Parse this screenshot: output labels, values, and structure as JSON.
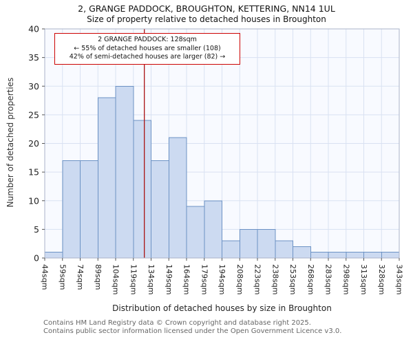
{
  "chart_data": {
    "type": "bar",
    "title": "2, GRANGE PADDOCK, BROUGHTON, KETTERING, NN14 1UL",
    "subtitle": "Size of property relative to detached houses in Broughton",
    "xlabel": "Distribution of detached houses by size in Broughton",
    "ylabel": "Number of detached properties",
    "categories": [
      "44sqm",
      "59sqm",
      "74sqm",
      "89sqm",
      "104sqm",
      "119sqm",
      "134sqm",
      "149sqm",
      "164sqm",
      "179sqm",
      "194sqm",
      "208sqm",
      "223sqm",
      "238sqm",
      "253sqm",
      "268sqm",
      "283sqm",
      "298sqm",
      "313sqm",
      "328sqm",
      "343sqm"
    ],
    "values": [
      1,
      17,
      17,
      28,
      30,
      24,
      17,
      21,
      9,
      10,
      3,
      5,
      5,
      3,
      2,
      1,
      1,
      1,
      1,
      1
    ],
    "ylim": [
      0,
      40
    ],
    "ytick_step": 5,
    "grid": true,
    "legend": null,
    "marker": {
      "value_sqm": 128
    },
    "annotation": {
      "line1": "2 GRANGE PADDOCK: 128sqm",
      "line2": "← 55% of detached houses are smaller (108)",
      "line3": "42% of semi-detached houses are larger (82) →"
    },
    "colors": {
      "bar_fill": "#ccdaf1",
      "bar_edge": "#6c92c4",
      "grid": "#d9e1f2",
      "marker": "#aa1111",
      "annotation_border": "#cc0000",
      "plot_bg": "#f8faff",
      "axis": "#aab3c8",
      "tick": "#555555",
      "tick_label": "#222222"
    }
  },
  "footer": {
    "line1": "Contains HM Land Registry data © Crown copyright and database right 2025.",
    "line2": "Contains public sector information licensed under the Open Government Licence v3.0."
  }
}
